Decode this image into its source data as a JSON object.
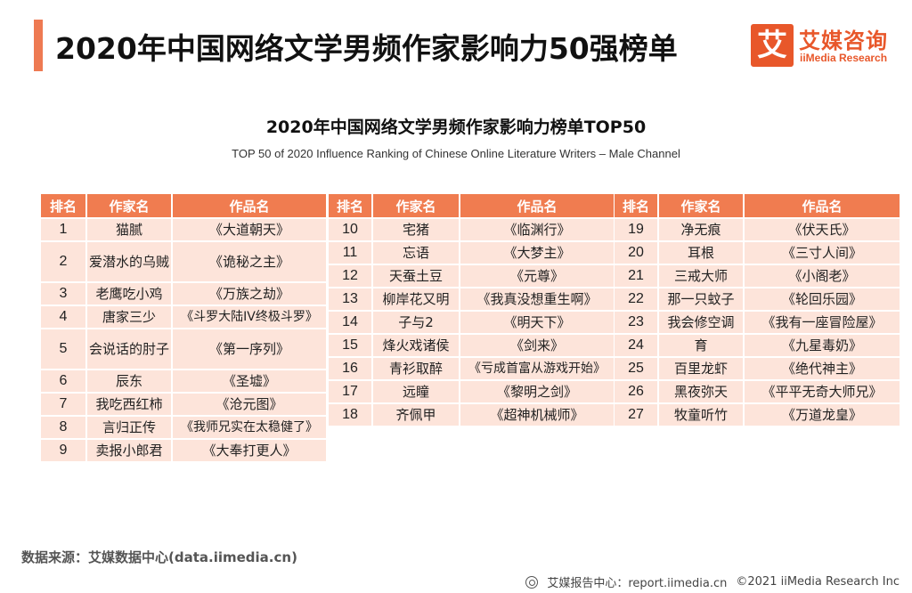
{
  "header": {
    "title": "2020年中国网络文学男频作家影响力50强榜单"
  },
  "logo": {
    "glyph": "艾",
    "name_cn": "艾媒咨询",
    "name_en": "iiMedia Research"
  },
  "report": {
    "title": "2020年中国网络文学男频作家影响力榜单TOP50",
    "subtitle": "TOP 50 of 2020 Influence Ranking of Chinese Online Literature Writers – Male Channel"
  },
  "table_headers": {
    "rank": "排名",
    "author": "作家名",
    "work": "作品名"
  },
  "columns": [
    {
      "rows": [
        {
          "rank": "1",
          "author": "猫腻",
          "work": "《大道朝天》"
        },
        {
          "rank": "2",
          "author": "爱潜水的乌贼",
          "work": "《诡秘之主》"
        },
        {
          "rank": "3",
          "author": "老鹰吃小鸡",
          "work": "《万族之劫》"
        },
        {
          "rank": "4",
          "author": "唐家三少",
          "work": "《斗罗大陆IV终极斗罗》"
        },
        {
          "rank": "5",
          "author": "会说话的肘子",
          "work": "《第一序列》"
        },
        {
          "rank": "6",
          "author": "辰东",
          "work": "《圣墟》"
        },
        {
          "rank": "7",
          "author": "我吃西红柿",
          "work": "《沧元图》"
        },
        {
          "rank": "8",
          "author": "言归正传",
          "work": "《我师兄实在太稳健了》"
        },
        {
          "rank": "9",
          "author": "卖报小郎君",
          "work": "《大奉打更人》"
        }
      ]
    },
    {
      "rows": [
        {
          "rank": "10",
          "author": "宅猪",
          "work": "《临渊行》"
        },
        {
          "rank": "11",
          "author": "忘语",
          "work": "《大梦主》"
        },
        {
          "rank": "12",
          "author": "天蚕土豆",
          "work": "《元尊》"
        },
        {
          "rank": "13",
          "author": "柳岸花又明",
          "work": "《我真没想重生啊》"
        },
        {
          "rank": "14",
          "author": "子与2",
          "work": "《明天下》"
        },
        {
          "rank": "15",
          "author": "烽火戏诸侯",
          "work": "《剑来》"
        },
        {
          "rank": "16",
          "author": "青衫取醉",
          "work": "《亏成首富从游戏开始》"
        },
        {
          "rank": "17",
          "author": "远瞳",
          "work": "《黎明之剑》"
        },
        {
          "rank": "18",
          "author": "齐佩甲",
          "work": "《超神机械师》"
        }
      ]
    },
    {
      "rows": [
        {
          "rank": "19",
          "author": "净无痕",
          "work": "《伏天氏》"
        },
        {
          "rank": "20",
          "author": "耳根",
          "work": "《三寸人间》"
        },
        {
          "rank": "21",
          "author": "三戒大师",
          "work": "《小阁老》"
        },
        {
          "rank": "22",
          "author": "那一只蚊子",
          "work": "《轮回乐园》"
        },
        {
          "rank": "23",
          "author": "我会修空调",
          "work": "《我有一座冒险屋》"
        },
        {
          "rank": "24",
          "author": "育",
          "work": "《九星毒奶》"
        },
        {
          "rank": "25",
          "author": "百里龙虾",
          "work": "《绝代神主》"
        },
        {
          "rank": "26",
          "author": "黑夜弥天",
          "work": "《平平无奇大师兄》"
        },
        {
          "rank": "27",
          "author": "牧童听竹",
          "work": "《万道龙皇》"
        }
      ]
    }
  ],
  "footer": {
    "source": "数据来源：艾媒数据中心(data.iimedia.cn)",
    "report_site": "艾媒报告中心：report.iimedia.cn",
    "copyright": "©2021  iiMedia Research  Inc"
  },
  "colors": {
    "accent": "#ee7a52",
    "header_fill": "#f07c50",
    "row_fill": "#fde4da",
    "brand": "#e8572a"
  }
}
